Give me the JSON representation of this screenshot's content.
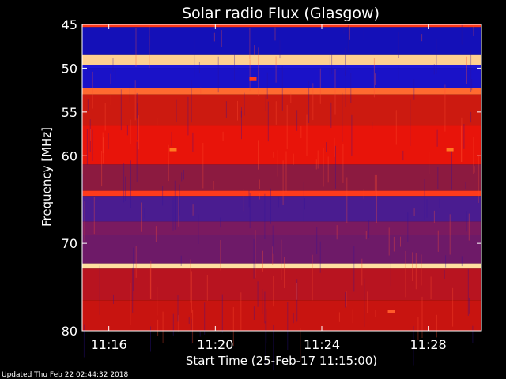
{
  "chart_data": {
    "type": "heatmap",
    "title": "Solar radio Flux (Glasgow)",
    "xlabel": "Start Time (25-Feb-17 11:15:00)",
    "ylabel": "Frequency [MHz]",
    "x_start": "11:15:00",
    "x_end": "11:30:00",
    "xlim_minutes": [
      0,
      15
    ],
    "ylim": [
      45,
      80
    ],
    "y_axis_inverted": true,
    "x_ticks": [
      {
        "minute": 1,
        "label": "11:16"
      },
      {
        "minute": 5,
        "label": "11:20"
      },
      {
        "minute": 9,
        "label": "11:24"
      },
      {
        "minute": 13,
        "label": "11:28"
      }
    ],
    "y_ticks": [
      {
        "value": 45,
        "label": "45"
      },
      {
        "value": 50,
        "label": "50"
      },
      {
        "value": 55,
        "label": "55"
      },
      {
        "value": 60,
        "label": "60"
      },
      {
        "value": 70,
        "label": "70"
      },
      {
        "value": 80,
        "label": "80"
      }
    ],
    "bands": [
      {
        "from": 45.0,
        "to": 45.3,
        "color": "#ff3a1a"
      },
      {
        "from": 45.3,
        "to": 48.5,
        "color": "#1410b8"
      },
      {
        "from": 48.5,
        "to": 49.6,
        "color": "#ffd090"
      },
      {
        "from": 49.6,
        "to": 50.0,
        "color": "#1e16d8"
      },
      {
        "from": 50.0,
        "to": 52.3,
        "color": "#1a12c8"
      },
      {
        "from": 52.3,
        "to": 53.0,
        "color": "#ff6a30"
      },
      {
        "from": 53.0,
        "to": 56.5,
        "color": "#cc1a10"
      },
      {
        "from": 56.5,
        "to": 61.0,
        "color": "#e8140a"
      },
      {
        "from": 61.0,
        "to": 64.0,
        "color": "#8c1a40"
      },
      {
        "from": 64.0,
        "to": 64.6,
        "color": "#ff3a1a"
      },
      {
        "from": 64.6,
        "to": 67.5,
        "color": "#4a1c90"
      },
      {
        "from": 67.5,
        "to": 69.0,
        "color": "#7a1a60"
      },
      {
        "from": 69.0,
        "to": 72.3,
        "color": "#6e1a68"
      },
      {
        "from": 72.3,
        "to": 72.9,
        "color": "#ffe0a0"
      },
      {
        "from": 72.9,
        "to": 76.5,
        "color": "#b81420"
      },
      {
        "from": 76.5,
        "to": 80.0,
        "color": "#c81410"
      }
    ],
    "bursts": [
      {
        "minute": 3.4,
        "freq": 59.3,
        "color": "#ff7a20"
      },
      {
        "minute": 13.8,
        "freq": 59.3,
        "color": "#ff7a20"
      },
      {
        "minute": 6.4,
        "freq": 51.2,
        "color": "#ff3a1a"
      },
      {
        "minute": 11.6,
        "freq": 77.8,
        "color": "#ff5a2a"
      }
    ],
    "colors": {
      "background": "#000000",
      "axes": "#ffffff",
      "text": "#ffffff"
    }
  },
  "footer": "Updated Thu Feb 22 02:44:32 2018"
}
